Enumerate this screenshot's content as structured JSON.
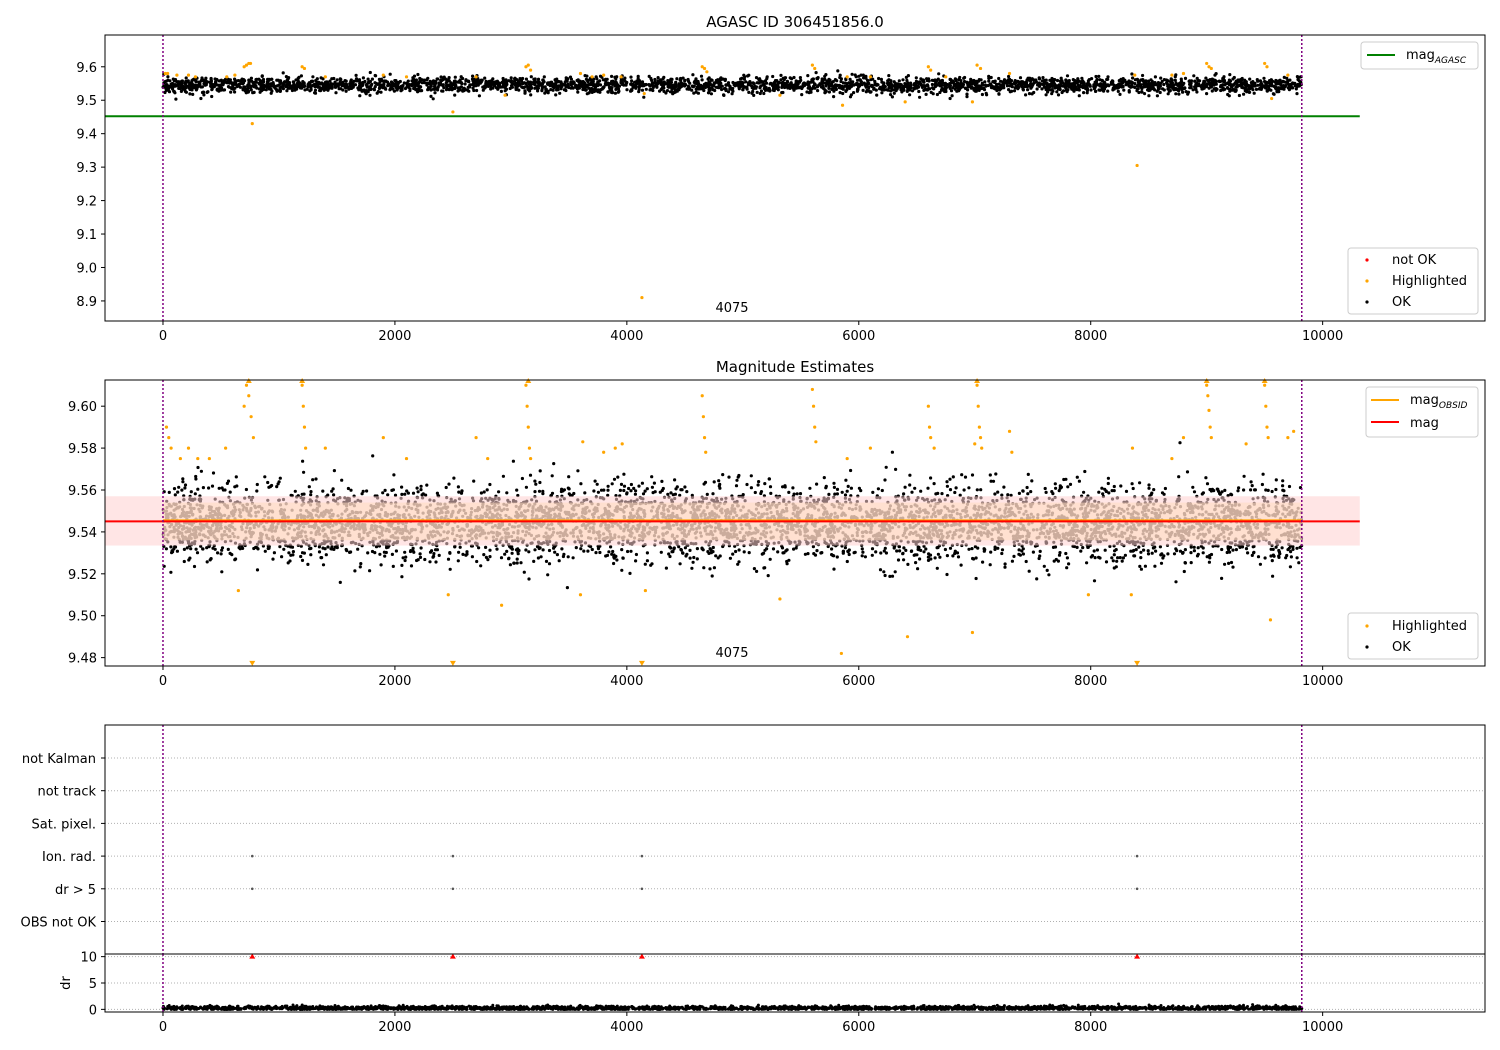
{
  "chart_data": [
    {
      "type": "scatter",
      "title": "AGASC ID 306451856.0",
      "xlabel": "",
      "ylabel": "",
      "xlim": [
        -500,
        11400
      ],
      "ylim": [
        8.84,
        9.695
      ],
      "xticks": [
        0,
        2000,
        4000,
        6000,
        8000,
        10000
      ],
      "yticks": [
        8.9,
        9.0,
        9.1,
        9.2,
        9.3,
        9.4,
        9.5,
        9.6
      ],
      "ytick_format": "1",
      "obsid_boundaries": [
        0,
        9820
      ],
      "obsid_label": "4075",
      "legend_top": [
        {
          "label": "mag",
          "sub": "AGASC",
          "kind": "line",
          "color": "#008000"
        }
      ],
      "legend_bottom": [
        {
          "label": "not OK",
          "kind": "dot",
          "color": "#ff0000"
        },
        {
          "label": "Highlighted",
          "kind": "dot",
          "color": "#ffa500"
        },
        {
          "label": "OK",
          "kind": "dot",
          "color": "#000000"
        }
      ],
      "lines": [
        {
          "name": "mag_AGASC",
          "y": 9.452,
          "x": [
            -500,
            10320
          ],
          "color": "#008000"
        }
      ],
      "series": [
        {
          "name": "OK",
          "color": "#000000",
          "x_range": [
            0,
            9820
          ],
          "y_center": 9.545,
          "y_spread": 0.012,
          "count": 3200
        },
        {
          "name": "Highlighted",
          "color": "#ffa500",
          "points": [
            [
              20,
              9.58
            ],
            [
              40,
              9.58
            ],
            [
              120,
              9.575
            ],
            [
              220,
              9.575
            ],
            [
              280,
              9.57
            ],
            [
              550,
              9.57
            ],
            [
              620,
              9.575
            ],
            [
              700,
              9.6
            ],
            [
              720,
              9.605
            ],
            [
              740,
              9.61
            ],
            [
              755,
              9.61
            ],
            [
              770,
              9.43
            ],
            [
              1200,
              9.6
            ],
            [
              1220,
              9.595
            ],
            [
              1400,
              9.57
            ],
            [
              1900,
              9.575
            ],
            [
              2100,
              9.57
            ],
            [
              2500,
              9.465
            ],
            [
              2700,
              9.57
            ],
            [
              2950,
              9.515
            ],
            [
              3130,
              9.6
            ],
            [
              3150,
              9.605
            ],
            [
              3170,
              9.59
            ],
            [
              3600,
              9.58
            ],
            [
              3700,
              9.57
            ],
            [
              3800,
              9.575
            ],
            [
              3950,
              9.57
            ],
            [
              4130,
              8.91
            ],
            [
              4150,
              9.52
            ],
            [
              4650,
              9.6
            ],
            [
              4670,
              9.595
            ],
            [
              4690,
              9.585
            ],
            [
              5320,
              9.515
            ],
            [
              5600,
              9.605
            ],
            [
              5620,
              9.595
            ],
            [
              5860,
              9.485
            ],
            [
              5900,
              9.57
            ],
            [
              6100,
              9.57
            ],
            [
              6400,
              9.495
            ],
            [
              6600,
              9.6
            ],
            [
              6620,
              9.59
            ],
            [
              6750,
              9.57
            ],
            [
              6980,
              9.495
            ],
            [
              7020,
              9.605
            ],
            [
              7050,
              9.595
            ],
            [
              7300,
              9.58
            ],
            [
              8380,
              9.575
            ],
            [
              8400,
              9.305
            ],
            [
              8700,
              9.575
            ],
            [
              8800,
              9.58
            ],
            [
              9000,
              9.61
            ],
            [
              9020,
              9.6
            ],
            [
              9040,
              9.595
            ],
            [
              9500,
              9.61
            ],
            [
              9520,
              9.6
            ],
            [
              9560,
              9.505
            ],
            [
              9700,
              9.575
            ]
          ]
        }
      ]
    },
    {
      "type": "scatter",
      "title": "Magnitude Estimates",
      "xlabel": "",
      "ylabel": "",
      "xlim": [
        -500,
        11400
      ],
      "ylim": [
        9.476,
        9.6125
      ],
      "xticks": [
        0,
        2000,
        4000,
        6000,
        8000,
        10000
      ],
      "yticks": [
        9.48,
        9.5,
        9.52,
        9.54,
        9.56,
        9.58,
        9.6
      ],
      "ytick_format": "2",
      "obsid_boundaries": [
        0,
        9820
      ],
      "obsid_label": "4075",
      "legend_top": [
        {
          "label": "mag",
          "sub": "OBSID",
          "kind": "line",
          "color": "#ffa500"
        },
        {
          "label": "mag",
          "sub": "",
          "kind": "line",
          "color": "#ff0000"
        }
      ],
      "legend_bottom": [
        {
          "label": "Highlighted",
          "kind": "dot",
          "color": "#ffa500"
        },
        {
          "label": "OK",
          "kind": "dot",
          "color": "#000000"
        }
      ],
      "bands": [
        {
          "name": "mag",
          "y": [
            9.5335,
            9.557
          ],
          "x": [
            -500,
            10320
          ],
          "color": "#ffd0d0"
        },
        {
          "name": "mag_OBSID",
          "y": [
            9.536,
            9.554
          ],
          "x": [
            0,
            9820
          ],
          "color": "#ffdcc0"
        }
      ],
      "lines": [
        {
          "name": "mag_OBSID",
          "y": 9.5455,
          "x": [
            0,
            9820
          ],
          "color": "#ffa500"
        },
        {
          "name": "mag",
          "y": 9.545,
          "x": [
            -500,
            10320
          ],
          "color": "#ff0000"
        }
      ],
      "series": [
        {
          "name": "OK",
          "color": "#000000",
          "x_range": [
            0,
            9820
          ],
          "y_center": 9.544,
          "y_spread": 0.009,
          "count": 5200
        },
        {
          "name": "Highlighted",
          "color": "#ffa500",
          "points": [
            [
              30,
              9.59
            ],
            [
              50,
              9.585
            ],
            [
              70,
              9.58
            ],
            [
              150,
              9.575
            ],
            [
              220,
              9.58
            ],
            [
              300,
              9.575
            ],
            [
              400,
              9.575
            ],
            [
              540,
              9.58
            ],
            [
              650,
              9.512
            ],
            [
              700,
              9.6
            ],
            [
              720,
              9.61
            ],
            [
              740,
              9.605
            ],
            [
              760,
              9.595
            ],
            [
              780,
              9.585
            ],
            [
              1200,
              9.61
            ],
            [
              1210,
              9.6
            ],
            [
              1220,
              9.59
            ],
            [
              1230,
              9.58
            ],
            [
              1400,
              9.58
            ],
            [
              1900,
              9.585
            ],
            [
              2100,
              9.575
            ],
            [
              2460,
              9.51
            ],
            [
              2700,
              9.585
            ],
            [
              2800,
              9.575
            ],
            [
              2920,
              9.505
            ],
            [
              3130,
              9.61
            ],
            [
              3140,
              9.6
            ],
            [
              3150,
              9.59
            ],
            [
              3160,
              9.58
            ],
            [
              3170,
              9.575
            ],
            [
              3600,
              9.51
            ],
            [
              3620,
              9.583
            ],
            [
              3800,
              9.578
            ],
            [
              3900,
              9.58
            ],
            [
              3960,
              9.582
            ],
            [
              4160,
              9.512
            ],
            [
              4650,
              9.605
            ],
            [
              4660,
              9.595
            ],
            [
              4670,
              9.585
            ],
            [
              4680,
              9.578
            ],
            [
              5320,
              9.508
            ],
            [
              5600,
              9.608
            ],
            [
              5610,
              9.6
            ],
            [
              5620,
              9.59
            ],
            [
              5630,
              9.583
            ],
            [
              5850,
              9.482
            ],
            [
              5900,
              9.575
            ],
            [
              6100,
              9.58
            ],
            [
              6420,
              9.49
            ],
            [
              6600,
              9.6
            ],
            [
              6610,
              9.59
            ],
            [
              6620,
              9.585
            ],
            [
              6650,
              9.58
            ],
            [
              6980,
              9.492
            ],
            [
              7000,
              9.582
            ],
            [
              7020,
              9.61
            ],
            [
              7030,
              9.6
            ],
            [
              7040,
              9.59
            ],
            [
              7050,
              9.585
            ],
            [
              7060,
              9.58
            ],
            [
              7300,
              9.588
            ],
            [
              7320,
              9.578
            ],
            [
              7980,
              9.51
            ],
            [
              8350,
              9.51
            ],
            [
              8360,
              9.58
            ],
            [
              8700,
              9.575
            ],
            [
              8800,
              9.585
            ],
            [
              9000,
              9.61
            ],
            [
              9010,
              9.605
            ],
            [
              9020,
              9.598
            ],
            [
              9030,
              9.59
            ],
            [
              9040,
              9.585
            ],
            [
              9340,
              9.582
            ],
            [
              9500,
              9.61
            ],
            [
              9510,
              9.6
            ],
            [
              9520,
              9.59
            ],
            [
              9530,
              9.585
            ],
            [
              9550,
              9.498
            ],
            [
              9700,
              9.585
            ],
            [
              9750,
              9.588
            ]
          ]
        },
        {
          "name": "Highlighted (clipped)",
          "color": "#ffa500",
          "marker": "triangle-down",
          "points": [
            [
              770,
              9.477
            ],
            [
              2500,
              9.477
            ],
            [
              4130,
              9.477
            ],
            [
              8400,
              9.477
            ]
          ]
        },
        {
          "name": "Highlighted (clipped high)",
          "color": "#ffa500",
          "marker": "triangle-up",
          "points": [
            [
              740,
              9.612
            ],
            [
              1200,
              9.612
            ],
            [
              3150,
              9.612
            ],
            [
              7020,
              9.612
            ],
            [
              9000,
              9.612
            ],
            [
              9500,
              9.612
            ]
          ]
        }
      ]
    },
    {
      "type": "scatter",
      "title": "",
      "xlabel": "",
      "ylabel": "",
      "xlim": [
        -500,
        11400
      ],
      "categories": [
        "not Kalman",
        "not track",
        "Sat. pixel.",
        "Ion. rad.",
        "dr > 5",
        "OBS not OK"
      ],
      "obsid_boundaries": [
        0,
        9820
      ],
      "flag_points": [
        {
          "category": "Ion. rad.",
          "x": [
            770,
            2500,
            4130,
            8400
          ]
        },
        {
          "category": "dr > 5",
          "x": [
            770,
            2500,
            4130,
            8400
          ]
        }
      ]
    },
    {
      "type": "scatter",
      "title": "",
      "xlabel": "",
      "ylabel": "dr",
      "xlim": [
        -500,
        11400
      ],
      "ylim": [
        -0.5,
        10.5
      ],
      "xticks": [
        0,
        2000,
        4000,
        6000,
        8000,
        10000
      ],
      "yticks": [
        0,
        5,
        10
      ],
      "ytick_format": "0",
      "obsid_boundaries": [
        0,
        9820
      ],
      "series": [
        {
          "name": "dr",
          "color": "#000000",
          "x_range": [
            0,
            9820
          ],
          "y_center": 0.25,
          "y_spread": 0.2,
          "count": 2600
        },
        {
          "name": "dr clipped",
          "color": "#ff0000",
          "marker": "triangle-up",
          "points": [
            [
              770,
              10
            ],
            [
              2500,
              10
            ],
            [
              4130,
              10
            ],
            [
              8400,
              10
            ]
          ]
        }
      ]
    }
  ]
}
